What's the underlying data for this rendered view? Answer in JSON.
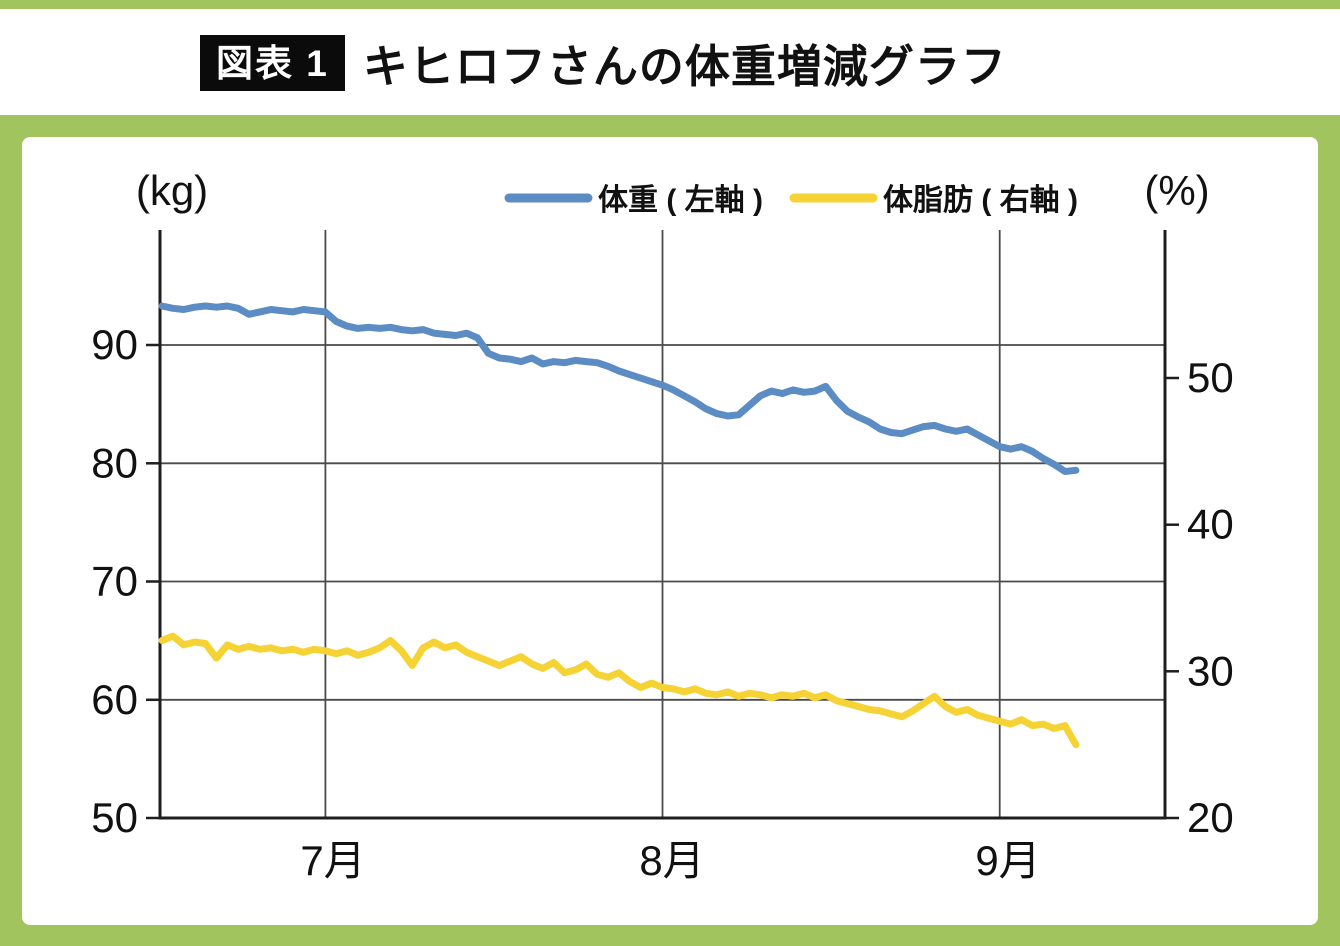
{
  "header": {
    "badge": "図表 1",
    "title": "キヒロフさんの体重増減グラフ"
  },
  "colors": {
    "green": "#a1c45e",
    "weight_blue": "#5b8cc4",
    "bodyfat_yellow": "#f6d335",
    "badge_black": "#0b0b0b"
  },
  "chart_data": {
    "type": "line",
    "title": "キヒロフさんの体重増減グラフ",
    "legend_position": "top-center",
    "grid": true,
    "x_tick_labels": [
      "7月",
      "8月",
      "9月"
    ],
    "x_tick_indices": [
      15,
      46,
      77
    ],
    "n_points": 85,
    "y_left": {
      "unit": "(kg)",
      "min": 50,
      "max": 100,
      "tick_labels": [
        "90",
        "80",
        "70",
        "60",
        "50"
      ],
      "tick_values": [
        90,
        80,
        70,
        60,
        50
      ]
    },
    "y_right": {
      "unit": "(%)",
      "min": 20,
      "max": 60,
      "tick_labels": [
        "50",
        "40",
        "30",
        "20"
      ],
      "tick_values": [
        50,
        40,
        30,
        20
      ]
    },
    "series": [
      {
        "name": "体重 ( 左軸 )",
        "axis": "left",
        "color": "#5b8cc4",
        "values": [
          93.3,
          93.1,
          93.0,
          93.2,
          93.3,
          93.2,
          93.3,
          93.1,
          92.6,
          92.8,
          93.0,
          92.9,
          92.8,
          93.0,
          92.9,
          92.8,
          92.0,
          91.6,
          91.4,
          91.5,
          91.4,
          91.5,
          91.3,
          91.2,
          91.3,
          91.0,
          90.9,
          90.8,
          91.0,
          90.6,
          89.3,
          88.9,
          88.8,
          88.6,
          88.9,
          88.4,
          88.6,
          88.5,
          88.7,
          88.6,
          88.5,
          88.2,
          87.8,
          87.5,
          87.2,
          86.9,
          86.6,
          86.2,
          85.7,
          85.2,
          84.6,
          84.2,
          84.0,
          84.1,
          84.9,
          85.7,
          86.1,
          85.9,
          86.2,
          86.0,
          86.1,
          86.5,
          85.3,
          84.4,
          83.9,
          83.5,
          82.9,
          82.6,
          82.5,
          82.8,
          83.1,
          83.2,
          82.9,
          82.7,
          82.9,
          82.4,
          81.9,
          81.4,
          81.2,
          81.4,
          81.0,
          80.4,
          79.9,
          79.3,
          79.4
        ]
      },
      {
        "name": "体脂肪 ( 右軸 )",
        "axis": "right",
        "color": "#f6d335",
        "values": [
          32.1,
          32.4,
          31.8,
          32.0,
          31.9,
          30.9,
          31.8,
          31.5,
          31.7,
          31.5,
          31.6,
          31.4,
          31.5,
          31.3,
          31.5,
          31.4,
          31.2,
          31.4,
          31.1,
          31.3,
          31.6,
          32.1,
          31.4,
          30.4,
          31.6,
          32.0,
          31.6,
          31.8,
          31.3,
          31.0,
          30.7,
          30.4,
          30.7,
          31.0,
          30.5,
          30.2,
          30.6,
          29.9,
          30.1,
          30.5,
          29.8,
          29.6,
          29.9,
          29.3,
          28.9,
          29.2,
          28.9,
          28.8,
          28.6,
          28.8,
          28.5,
          28.4,
          28.6,
          28.3,
          28.5,
          28.4,
          28.2,
          28.4,
          28.3,
          28.5,
          28.2,
          28.4,
          28.0,
          27.8,
          27.6,
          27.4,
          27.3,
          27.1,
          26.9,
          27.3,
          27.8,
          28.3,
          27.6,
          27.2,
          27.4,
          27.0,
          26.8,
          26.6,
          26.4,
          26.7,
          26.3,
          26.4,
          26.1,
          26.3,
          25.0
        ]
      }
    ]
  }
}
